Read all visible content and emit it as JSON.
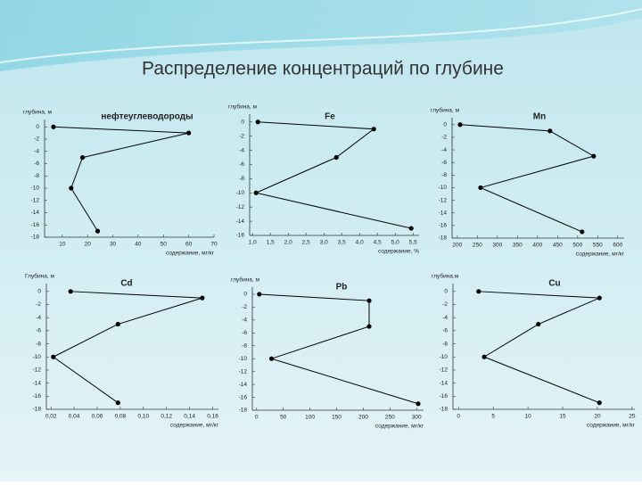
{
  "title": "Распределение концентраций по глубине",
  "chart_data": [
    {
      "type": "line",
      "title": "нефтеуглеводороды",
      "y_label": "глубина, м",
      "x_label": "содержание, мг/кг",
      "color": "#000000",
      "x": [
        6.5,
        60,
        18,
        13.5,
        24
      ],
      "values": [
        0,
        -1,
        -5,
        -10,
        -17
      ],
      "xlim": [
        3,
        70
      ],
      "xticks": [
        10,
        20,
        30,
        40,
        50,
        60,
        70
      ],
      "ylim": [
        -18,
        1.2
      ],
      "yticks": [
        0,
        -2,
        -4,
        -6,
        -8,
        -10,
        -12,
        -14,
        -16,
        -18
      ]
    },
    {
      "type": "line",
      "title": "Fe",
      "y_label": "глубина, м",
      "x_label": "содержание, %",
      "color": "#000000",
      "x": [
        1.15,
        4.4,
        3.35,
        1.1,
        5.45
      ],
      "values": [
        0,
        -1,
        -5,
        -10,
        -15
      ],
      "xlim": [
        0.92,
        5.67
      ],
      "xticks": [
        {
          "value": 1.0,
          "label": "1,0"
        },
        {
          "value": 1.5,
          "label": "1,5"
        },
        {
          "value": 2.0,
          "label": "2,0"
        },
        {
          "value": 2.5,
          "label": "2,5"
        },
        {
          "value": 3.0,
          "label": "3,0"
        },
        {
          "value": 3.5,
          "label": "3,5"
        },
        {
          "value": 4.0,
          "label": "4,0"
        },
        {
          "value": 4.5,
          "label": "4,5"
        },
        {
          "value": 5.0,
          "label": "5,0"
        },
        {
          "value": 5.5,
          "label": "5,5"
        }
      ],
      "ylim": [
        -16,
        1.1
      ],
      "yticks": [
        0,
        -2,
        -4,
        -6,
        -8,
        -10,
        -12,
        -14,
        -16
      ]
    },
    {
      "type": "line",
      "title": "Mn",
      "y_label": "глубина, м",
      "x_label": "содержание, мг/кг",
      "color": "#000000",
      "x": [
        207,
        431,
        540,
        258,
        511
      ],
      "values": [
        0,
        -1,
        -5,
        -10,
        -17
      ],
      "xlim": [
        187,
        616
      ],
      "xticks": [
        200,
        250,
        300,
        350,
        400,
        450,
        500,
        550,
        600
      ],
      "ylim": [
        -18,
        1.1
      ],
      "yticks": [
        0,
        -2,
        -4,
        -6,
        -8,
        -10,
        -12,
        -14,
        -16,
        -18
      ]
    },
    {
      "type": "line",
      "title": "Cd",
      "y_label": "Глубина, м",
      "x_label": "содержание, мг/кг",
      "color": "#000000",
      "x": [
        0.037,
        0.151,
        0.078,
        0.022,
        0.078
      ],
      "values": [
        0,
        -1,
        -5,
        -10,
        -17
      ],
      "xlim": [
        0.016,
        0.165
      ],
      "xticks": [
        {
          "value": 0.02,
          "label": "0,02"
        },
        {
          "value": 0.04,
          "label": "0,04"
        },
        {
          "value": 0.06,
          "label": "0,06"
        },
        {
          "value": 0.08,
          "label": "0,08"
        },
        {
          "value": 0.1,
          "label": "0,10"
        },
        {
          "value": 0.12,
          "label": "0,12"
        },
        {
          "value": 0.14,
          "label": "0,14"
        },
        {
          "value": 0.16,
          "label": "0,16"
        }
      ],
      "ylim": [
        -18,
        1.2
      ],
      "yticks": [
        0,
        -2,
        -4,
        -6,
        -8,
        -10,
        -12,
        -14,
        -16,
        -18
      ]
    },
    {
      "type": "line",
      "title": "Pb",
      "y_label": "глубина, м",
      "x_label": "содержание, мг/кг",
      "color": "#000000",
      "x": [
        5,
        211,
        211,
        28,
        303
      ],
      "values": [
        0,
        -1,
        -5,
        -10,
        -17
      ],
      "xlim": [
        -8,
        313
      ],
      "xticks": [
        0,
        50,
        100,
        150,
        200,
        250,
        300
      ],
      "ylim": [
        -18,
        1.1
      ],
      "yticks": [
        0,
        -2,
        -4,
        -6,
        -8,
        -10,
        -12,
        -14,
        -16,
        -18
      ]
    },
    {
      "type": "line",
      "title": "Cu",
      "y_label": "глубина,м",
      "x_label": "содержание, мг/кг",
      "color": "#000000",
      "x": [
        2.9,
        20.3,
        11.5,
        3.7,
        20.3
      ],
      "values": [
        0,
        -1,
        -5,
        -10,
        -17
      ],
      "xlim": [
        -0.8,
        25.4
      ],
      "xticks": [
        0,
        5,
        10,
        15,
        20,
        25
      ],
      "ylim": [
        -18,
        1.2
      ],
      "yticks": [
        0,
        -2,
        -4,
        -6,
        -8,
        -10,
        -12,
        -14,
        -16,
        -18
      ]
    }
  ]
}
